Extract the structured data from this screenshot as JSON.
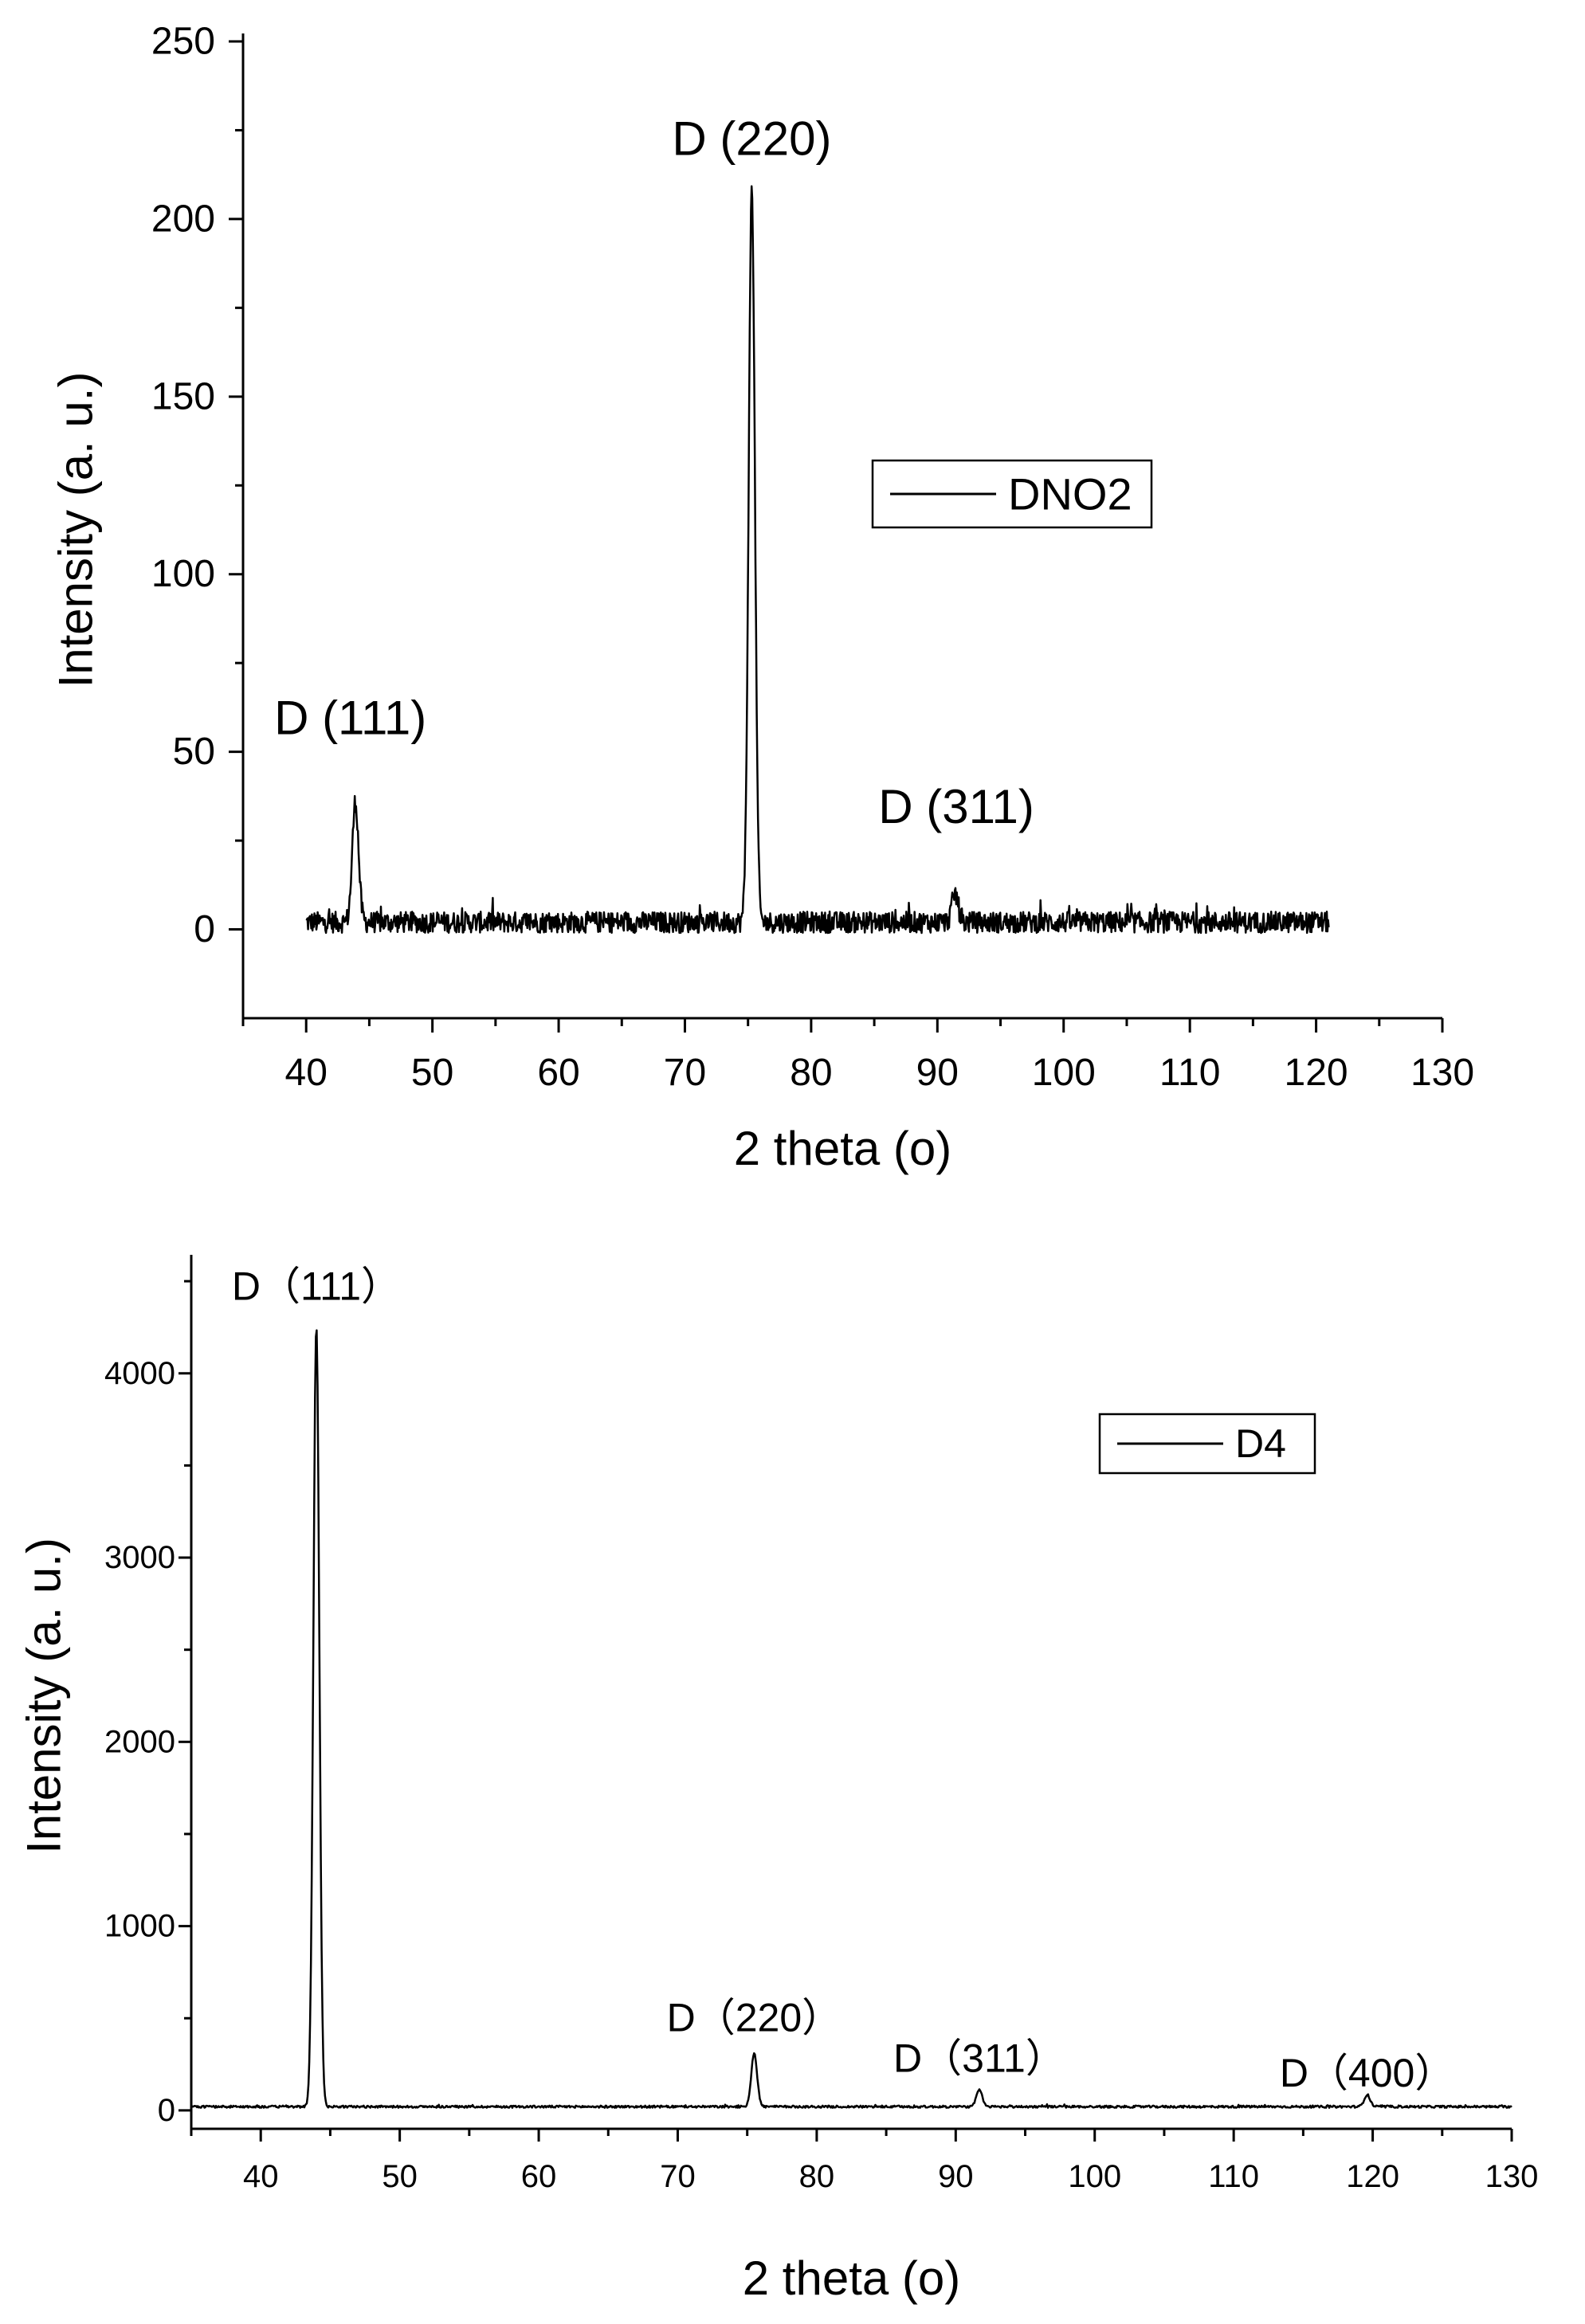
{
  "chart_data": [
    {
      "type": "line",
      "xlabel": "2 theta (o)",
      "ylabel": "Intensity (a. u.)",
      "xlim": [
        35,
        130
      ],
      "ylim": [
        -25,
        250
      ],
      "xticks": [
        40,
        50,
        60,
        70,
        80,
        90,
        100,
        110,
        120,
        130
      ],
      "yticks": [
        0,
        50,
        100,
        150,
        200,
        250
      ],
      "grid": false,
      "legend": {
        "position": "right-middle",
        "entries": [
          "DNO2"
        ]
      },
      "series": [
        {
          "name": "DNO2",
          "color": "#000000",
          "x_range": [
            40,
            121
          ],
          "baseline": 2,
          "noise": 3,
          "peaks": [
            {
              "x": 43.9,
              "y": 36,
              "width": 0.35
            },
            {
              "x": 75.3,
              "y": 208,
              "width": 0.35
            },
            {
              "x": 91.4,
              "y": 10,
              "width": 0.35
            }
          ]
        }
      ],
      "annotations": [
        {
          "text": "D (111)",
          "x": 43.5,
          "y": 55
        },
        {
          "text": "D (220)",
          "x": 75.3,
          "y": 218
        },
        {
          "text": "D (311)",
          "x": 91.5,
          "y": 30
        }
      ]
    },
    {
      "type": "line",
      "xlabel": "2 theta (o)",
      "ylabel": "Intensity (a. u.)",
      "xlim": [
        35,
        130
      ],
      "ylim": [
        -100,
        4600
      ],
      "xticks": [
        40,
        50,
        60,
        70,
        80,
        90,
        100,
        110,
        120,
        130
      ],
      "yticks": [
        0,
        1000,
        2000,
        3000,
        4000
      ],
      "grid": false,
      "legend": {
        "position": "top-right",
        "entries": [
          "D4"
        ]
      },
      "series": [
        {
          "name": "D4",
          "color": "#000000",
          "x_range": [
            35,
            130
          ],
          "baseline": 20,
          "noise": 6,
          "peaks": [
            {
              "x": 44.0,
              "y": 4260,
              "width": 0.3
            },
            {
              "x": 75.5,
              "y": 310,
              "width": 0.3
            },
            {
              "x": 91.7,
              "y": 110,
              "width": 0.3
            },
            {
              "x": 119.6,
              "y": 85,
              "width": 0.3
            }
          ]
        }
      ],
      "annotations": [
        {
          "text": "D（111）",
          "x": 44.0,
          "y": 4400
        },
        {
          "text": "D（220）",
          "x": 75.5,
          "y": 430
        },
        {
          "text": "D（311）",
          "x": 91.7,
          "y": 210
        },
        {
          "text": "D（400）",
          "x": 119.6,
          "y": 130
        }
      ]
    }
  ]
}
